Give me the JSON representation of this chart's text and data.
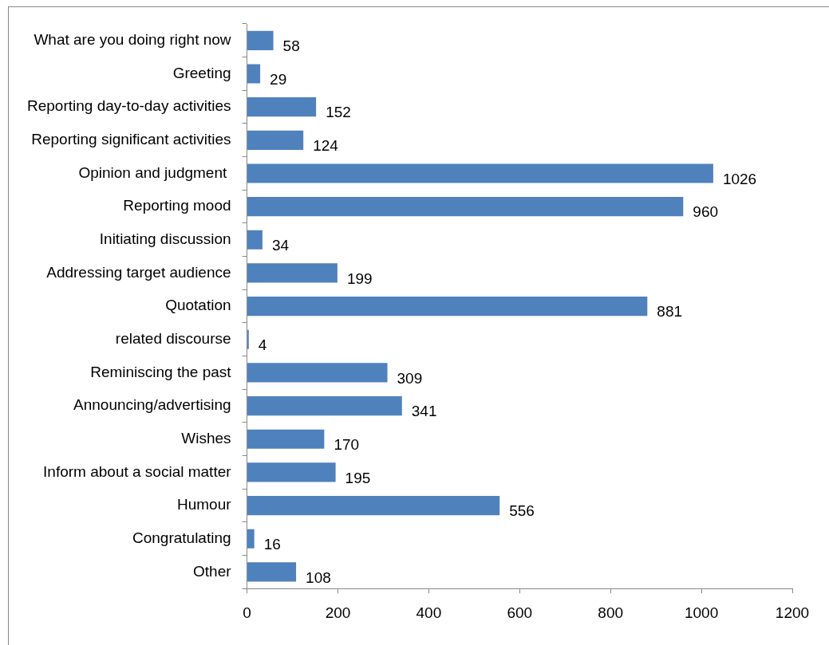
{
  "chart_data": {
    "type": "bar",
    "orientation": "horizontal",
    "categories": [
      "What are you doing right now",
      "Greeting",
      "Reporting day-to-day activities",
      "Reporting significant activities",
      "Opinion and judgment ",
      "Reporting mood",
      "Initiating discussion",
      "Addressing target audience",
      "Quotation",
      "related discourse",
      "Reminiscing the past",
      "Announcing/advertising",
      "Wishes",
      "Inform about a social matter",
      "Humour",
      "Congratulating",
      "Other"
    ],
    "values": [
      58,
      29,
      152,
      124,
      1026,
      960,
      34,
      199,
      881,
      4,
      309,
      341,
      170,
      195,
      556,
      16,
      108
    ],
    "color": "#4f81bd",
    "xlim": [
      0,
      1200
    ],
    "xticks": [
      0,
      200,
      400,
      600,
      800,
      1000,
      1200
    ],
    "data_labels": true,
    "grid": false,
    "legend": false
  }
}
